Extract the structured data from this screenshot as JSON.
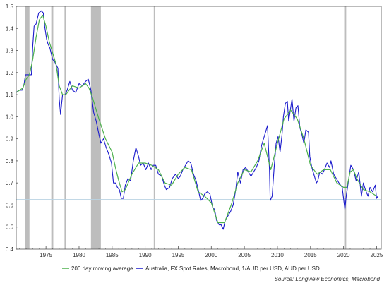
{
  "chart_data": {
    "type": "line",
    "title": "",
    "xlabel": "",
    "ylabel": "",
    "xlim": [
      1970.5,
      2025.7
    ],
    "ylim": [
      0.4,
      1.5
    ],
    "x_ticks": [
      1975,
      1980,
      1985,
      1990,
      1995,
      2000,
      2005,
      2010,
      2015,
      2020,
      2025
    ],
    "x_tick_labels": [
      "1975",
      "1980",
      "1985",
      "1990",
      "1995",
      "2000",
      "2005",
      "2010",
      "2015",
      "2020",
      "2025"
    ],
    "y_ticks": [
      0.4,
      0.5,
      0.6,
      0.7,
      0.8,
      0.9,
      1.0,
      1.1,
      1.2,
      1.3,
      1.4,
      1.5
    ],
    "y_tick_labels": [
      "0.4",
      "0.5",
      "0.6",
      "0.7",
      "0.8",
      "0.9",
      "1.0",
      "1.1",
      "1.2",
      "1.3",
      "1.4",
      "1.5"
    ],
    "grid": false,
    "legend_position": "bottom",
    "reference_line": {
      "y": 0.625,
      "color": "#b9d3e3"
    },
    "shaded_periods": [
      {
        "start": 1971.8,
        "end": 1972.5
      },
      {
        "start": 1975.8,
        "end": 1976.1
      },
      {
        "start": 1977.8,
        "end": 1978.0
      },
      {
        "start": 1981.8,
        "end": 1983.3
      },
      {
        "start": 1991.3,
        "end": 1991.5
      },
      {
        "start": 2020.1,
        "end": 2020.4
      }
    ],
    "shade_color": "#bdbdbd",
    "series": [
      {
        "name": "200 day moving average",
        "color": "#4cb04c",
        "points": [
          [
            1970.5,
            1.11
          ],
          [
            1971.5,
            1.13
          ],
          [
            1972.0,
            1.17
          ],
          [
            1972.5,
            1.19
          ],
          [
            1973.0,
            1.26
          ],
          [
            1973.5,
            1.36
          ],
          [
            1974.0,
            1.44
          ],
          [
            1974.5,
            1.46
          ],
          [
            1975.0,
            1.41
          ],
          [
            1975.5,
            1.34
          ],
          [
            1976.0,
            1.29
          ],
          [
            1976.5,
            1.24
          ],
          [
            1977.0,
            1.14
          ],
          [
            1977.5,
            1.1
          ],
          [
            1978.0,
            1.1
          ],
          [
            1978.5,
            1.12
          ],
          [
            1979.0,
            1.14
          ],
          [
            1980.0,
            1.13
          ],
          [
            1981.0,
            1.15
          ],
          [
            1981.5,
            1.13
          ],
          [
            1982.0,
            1.09
          ],
          [
            1983.0,
            0.99
          ],
          [
            1984.0,
            0.9
          ],
          [
            1985.0,
            0.84
          ],
          [
            1985.5,
            0.77
          ],
          [
            1986.0,
            0.71
          ],
          [
            1986.5,
            0.66
          ],
          [
            1987.0,
            0.67
          ],
          [
            1988.0,
            0.74
          ],
          [
            1989.0,
            0.79
          ],
          [
            1990.0,
            0.79
          ],
          [
            1991.0,
            0.78
          ],
          [
            1992.0,
            0.76
          ],
          [
            1993.0,
            0.7
          ],
          [
            1994.0,
            0.69
          ],
          [
            1995.0,
            0.74
          ],
          [
            1996.0,
            0.77
          ],
          [
            1997.0,
            0.76
          ],
          [
            1998.0,
            0.66
          ],
          [
            1999.0,
            0.64
          ],
          [
            2000.0,
            0.61
          ],
          [
            2001.0,
            0.52
          ],
          [
            2002.0,
            0.52
          ],
          [
            2003.0,
            0.6
          ],
          [
            2004.0,
            0.7
          ],
          [
            2005.0,
            0.76
          ],
          [
            2006.0,
            0.75
          ],
          [
            2007.0,
            0.8
          ],
          [
            2008.0,
            0.88
          ],
          [
            2009.0,
            0.76
          ],
          [
            2010.0,
            0.88
          ],
          [
            2011.0,
            0.99
          ],
          [
            2012.0,
            1.03
          ],
          [
            2013.0,
            0.99
          ],
          [
            2014.0,
            0.9
          ],
          [
            2015.0,
            0.78
          ],
          [
            2016.0,
            0.74
          ],
          [
            2017.0,
            0.76
          ],
          [
            2018.0,
            0.76
          ],
          [
            2019.0,
            0.7
          ],
          [
            2020.0,
            0.68
          ],
          [
            2020.5,
            0.68
          ],
          [
            2021.0,
            0.75
          ],
          [
            2021.5,
            0.76
          ],
          [
            2022.0,
            0.72
          ],
          [
            2023.0,
            0.67
          ],
          [
            2024.0,
            0.66
          ],
          [
            2025.0,
            0.64
          ]
        ]
      },
      {
        "name": "Australia, FX Spot Rates, Macrobond, 1/AUD per USD, AUD per USD",
        "color": "#1a1acc",
        "points": [
          [
            1970.5,
            1.11
          ],
          [
            1970.9,
            1.12
          ],
          [
            1971.4,
            1.12
          ],
          [
            1971.7,
            1.15
          ],
          [
            1971.9,
            1.19
          ],
          [
            1972.8,
            1.19
          ],
          [
            1973.0,
            1.32
          ],
          [
            1973.2,
            1.41
          ],
          [
            1973.5,
            1.42
          ],
          [
            1973.9,
            1.47
          ],
          [
            1974.3,
            1.48
          ],
          [
            1974.6,
            1.47
          ],
          [
            1974.8,
            1.41
          ],
          [
            1975.1,
            1.35
          ],
          [
            1975.3,
            1.33
          ],
          [
            1975.6,
            1.31
          ],
          [
            1976.0,
            1.26
          ],
          [
            1976.3,
            1.25
          ],
          [
            1976.8,
            1.22
          ],
          [
            1977.0,
            1.08
          ],
          [
            1977.2,
            1.01
          ],
          [
            1977.5,
            1.1
          ],
          [
            1977.9,
            1.1
          ],
          [
            1978.2,
            1.12
          ],
          [
            1978.6,
            1.16
          ],
          [
            1979.0,
            1.12
          ],
          [
            1979.5,
            1.11
          ],
          [
            1980.0,
            1.15
          ],
          [
            1980.5,
            1.14
          ],
          [
            1981.0,
            1.16
          ],
          [
            1981.4,
            1.17
          ],
          [
            1981.8,
            1.12
          ],
          [
            1982.2,
            1.02
          ],
          [
            1982.6,
            0.98
          ],
          [
            1983.0,
            0.92
          ],
          [
            1983.3,
            0.88
          ],
          [
            1983.7,
            0.9
          ],
          [
            1984.1,
            0.86
          ],
          [
            1984.5,
            0.83
          ],
          [
            1984.9,
            0.79
          ],
          [
            1985.2,
            0.7
          ],
          [
            1985.5,
            0.7
          ],
          [
            1985.8,
            0.68
          ],
          [
            1986.1,
            0.67
          ],
          [
            1986.4,
            0.63
          ],
          [
            1986.7,
            0.63
          ],
          [
            1987.0,
            0.69
          ],
          [
            1987.4,
            0.72
          ],
          [
            1987.8,
            0.71
          ],
          [
            1988.2,
            0.8
          ],
          [
            1988.6,
            0.86
          ],
          [
            1989.0,
            0.82
          ],
          [
            1989.3,
            0.78
          ],
          [
            1989.7,
            0.79
          ],
          [
            1990.1,
            0.76
          ],
          [
            1990.5,
            0.79
          ],
          [
            1990.9,
            0.76
          ],
          [
            1991.2,
            0.78
          ],
          [
            1991.6,
            0.78
          ],
          [
            1992.0,
            0.74
          ],
          [
            1992.5,
            0.73
          ],
          [
            1992.9,
            0.69
          ],
          [
            1993.2,
            0.67
          ],
          [
            1993.7,
            0.68
          ],
          [
            1994.1,
            0.72
          ],
          [
            1994.6,
            0.74
          ],
          [
            1995.0,
            0.72
          ],
          [
            1995.3,
            0.73
          ],
          [
            1995.7,
            0.76
          ],
          [
            1996.1,
            0.78
          ],
          [
            1996.5,
            0.8
          ],
          [
            1996.9,
            0.79
          ],
          [
            1997.3,
            0.74
          ],
          [
            1997.7,
            0.71
          ],
          [
            1998.1,
            0.66
          ],
          [
            1998.4,
            0.62
          ],
          [
            1998.7,
            0.63
          ],
          [
            1999.0,
            0.65
          ],
          [
            1999.4,
            0.66
          ],
          [
            1999.8,
            0.65
          ],
          [
            2000.2,
            0.59
          ],
          [
            2000.5,
            0.58
          ],
          [
            2000.8,
            0.53
          ],
          [
            2001.2,
            0.51
          ],
          [
            2001.5,
            0.51
          ],
          [
            2001.8,
            0.49
          ],
          [
            2002.1,
            0.53
          ],
          [
            2002.5,
            0.55
          ],
          [
            2002.9,
            0.57
          ],
          [
            2003.3,
            0.6
          ],
          [
            2003.7,
            0.67
          ],
          [
            2004.0,
            0.75
          ],
          [
            2004.4,
            0.7
          ],
          [
            2004.8,
            0.76
          ],
          [
            2005.2,
            0.77
          ],
          [
            2005.6,
            0.75
          ],
          [
            2006.0,
            0.73
          ],
          [
            2006.4,
            0.75
          ],
          [
            2006.8,
            0.77
          ],
          [
            2007.2,
            0.8
          ],
          [
            2007.6,
            0.87
          ],
          [
            2007.9,
            0.9
          ],
          [
            2008.2,
            0.93
          ],
          [
            2008.5,
            0.96
          ],
          [
            2008.8,
            0.76
          ],
          [
            2008.9,
            0.62
          ],
          [
            2009.2,
            0.64
          ],
          [
            2009.5,
            0.77
          ],
          [
            2009.8,
            0.88
          ],
          [
            2010.1,
            0.91
          ],
          [
            2010.4,
            0.84
          ],
          [
            2010.7,
            0.92
          ],
          [
            2010.9,
            1.0
          ],
          [
            2011.2,
            1.06
          ],
          [
            2011.5,
            1.07
          ],
          [
            2011.7,
            0.98
          ],
          [
            2011.9,
            1.02
          ],
          [
            2012.2,
            1.08
          ],
          [
            2012.5,
            0.98
          ],
          [
            2012.8,
            1.04
          ],
          [
            2013.1,
            1.05
          ],
          [
            2013.4,
            0.95
          ],
          [
            2013.7,
            0.92
          ],
          [
            2014.0,
            0.88
          ],
          [
            2014.3,
            0.94
          ],
          [
            2014.7,
            0.93
          ],
          [
            2014.9,
            0.82
          ],
          [
            2015.2,
            0.77
          ],
          [
            2015.6,
            0.73
          ],
          [
            2015.9,
            0.7
          ],
          [
            2016.1,
            0.71
          ],
          [
            2016.4,
            0.75
          ],
          [
            2016.8,
            0.74
          ],
          [
            2017.1,
            0.76
          ],
          [
            2017.5,
            0.79
          ],
          [
            2017.9,
            0.77
          ],
          [
            2018.1,
            0.8
          ],
          [
            2018.5,
            0.74
          ],
          [
            2018.9,
            0.72
          ],
          [
            2019.3,
            0.7
          ],
          [
            2019.8,
            0.68
          ],
          [
            2020.2,
            0.58
          ],
          [
            2020.4,
            0.64
          ],
          [
            2020.8,
            0.72
          ],
          [
            2021.1,
            0.78
          ],
          [
            2021.5,
            0.76
          ],
          [
            2021.9,
            0.71
          ],
          [
            2022.3,
            0.75
          ],
          [
            2022.7,
            0.64
          ],
          [
            2023.0,
            0.7
          ],
          [
            2023.3,
            0.67
          ],
          [
            2023.7,
            0.64
          ],
          [
            2024.0,
            0.68
          ],
          [
            2024.4,
            0.66
          ],
          [
            2024.8,
            0.69
          ],
          [
            2025.0,
            0.63
          ],
          [
            2025.2,
            0.64
          ]
        ]
      }
    ],
    "source_note": "Source: Longview Economics, Macrobond"
  }
}
